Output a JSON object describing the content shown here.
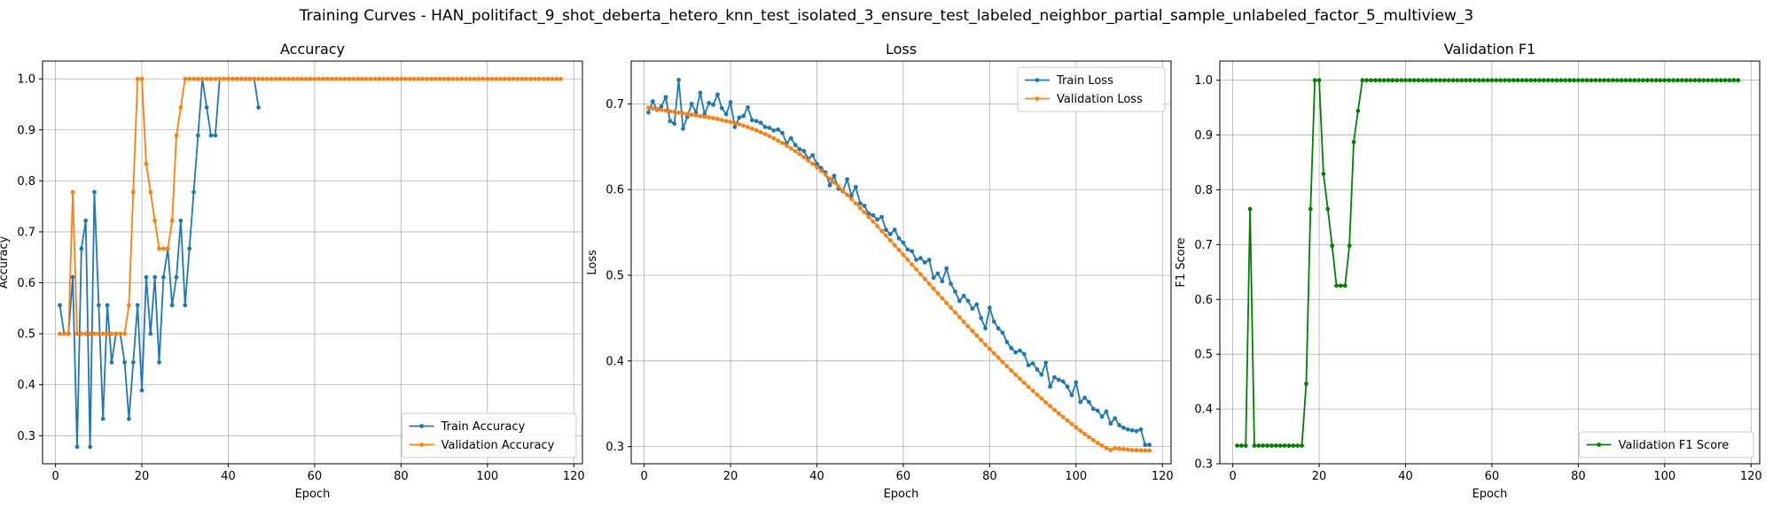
{
  "suptitle": "Training Curves - HAN_politifact_9_shot_deberta_hetero_knn_test_isolated_3_ensure_test_labeled_neighbor_partial_sample_unlabeled_factor_5_multiview_3",
  "colors": {
    "blue": "#1f77b4",
    "orange": "#ff7f0e",
    "green": "#008000",
    "grid": "#b0b0b0"
  },
  "chart_data": [
    {
      "type": "line",
      "title": "Accuracy",
      "xlabel": "Epoch",
      "ylabel": "Accuracy",
      "xlim": [
        -3,
        122
      ],
      "ylim": [
        0.245,
        1.035
      ],
      "xticks": [
        0,
        20,
        40,
        60,
        80,
        100,
        120
      ],
      "yticks": [
        0.3,
        0.4,
        0.5,
        0.6,
        0.7,
        0.8,
        0.9,
        1.0
      ],
      "legend_loc": "lower-right",
      "series": [
        {
          "name": "Train Accuracy",
          "color": "#1f77b4",
          "x_start": 1,
          "values": [
            0.556,
            0.5,
            0.5,
            0.611,
            0.278,
            0.667,
            0.722,
            0.278,
            0.778,
            0.556,
            0.333,
            0.556,
            0.444,
            0.5,
            0.5,
            0.444,
            0.333,
            0.444,
            0.556,
            0.389,
            0.611,
            0.5,
            0.611,
            0.444,
            0.611,
            0.667,
            0.556,
            0.611,
            0.722,
            0.556,
            0.667,
            0.778,
            0.889,
            1.0,
            0.944,
            0.889,
            0.889,
            1.0,
            1.0,
            1.0,
            1.0,
            1.0,
            1.0,
            1.0,
            1.0,
            1.0,
            0.944
          ]
        },
        {
          "name": "Validation Accuracy",
          "color": "#ff7f0e",
          "x_start": 1,
          "values": [
            0.5,
            0.5,
            0.5,
            0.778,
            0.5,
            0.5,
            0.5,
            0.5,
            0.5,
            0.5,
            0.5,
            0.5,
            0.5,
            0.5,
            0.5,
            0.5,
            0.556,
            0.778,
            1.0,
            1.0,
            0.833,
            0.778,
            0.722,
            0.667,
            0.667,
            0.667,
            0.722,
            0.889,
            0.944,
            1.0,
            1.0,
            1.0,
            1.0,
            1.0,
            1.0,
            1.0,
            1.0,
            1.0,
            1.0,
            1.0,
            1.0,
            1.0,
            1.0,
            1.0,
            1.0,
            1.0,
            1.0,
            1.0,
            1.0,
            1.0,
            1.0,
            1.0,
            1.0,
            1.0,
            1.0,
            1.0,
            1.0,
            1.0,
            1.0,
            1.0,
            1.0,
            1.0,
            1.0,
            1.0,
            1.0,
            1.0,
            1.0,
            1.0,
            1.0,
            1.0,
            1.0,
            1.0,
            1.0,
            1.0,
            1.0,
            1.0,
            1.0,
            1.0,
            1.0,
            1.0,
            1.0,
            1.0,
            1.0,
            1.0,
            1.0,
            1.0,
            1.0,
            1.0,
            1.0,
            1.0,
            1.0,
            1.0,
            1.0,
            1.0,
            1.0,
            1.0,
            1.0,
            1.0,
            1.0,
            1.0,
            1.0,
            1.0,
            1.0,
            1.0,
            1.0,
            1.0,
            1.0,
            1.0,
            1.0,
            1.0,
            1.0,
            1.0,
            1.0,
            1.0,
            1.0,
            1.0,
            1.0
          ]
        }
      ]
    },
    {
      "type": "line",
      "title": "Loss",
      "xlabel": "Epoch",
      "ylabel": "Loss",
      "xlim": [
        -3,
        122
      ],
      "ylim": [
        0.28,
        0.75
      ],
      "xticks": [
        0,
        20,
        40,
        60,
        80,
        100,
        120
      ],
      "yticks": [
        0.3,
        0.4,
        0.5,
        0.6,
        0.7
      ],
      "legend_loc": "top-right",
      "series": [
        {
          "name": "Train Loss",
          "color": "#1f77b4",
          "x_start": 1,
          "values": [
            0.69,
            0.703,
            0.693,
            0.697,
            0.708,
            0.68,
            0.677,
            0.728,
            0.671,
            0.685,
            0.7,
            0.69,
            0.713,
            0.688,
            0.701,
            0.699,
            0.711,
            0.695,
            0.688,
            0.702,
            0.673,
            0.684,
            0.686,
            0.696,
            0.681,
            0.68,
            0.678,
            0.673,
            0.672,
            0.669,
            0.67,
            0.666,
            0.654,
            0.66,
            0.652,
            0.647,
            0.645,
            0.636,
            0.64,
            0.63,
            0.625,
            0.62,
            0.605,
            0.616,
            0.601,
            0.598,
            0.612,
            0.593,
            0.603,
            0.584,
            0.581,
            0.572,
            0.57,
            0.565,
            0.568,
            0.553,
            0.548,
            0.553,
            0.543,
            0.538,
            0.53,
            0.528,
            0.518,
            0.52,
            0.515,
            0.518,
            0.497,
            0.502,
            0.493,
            0.508,
            0.49,
            0.481,
            0.47,
            0.476,
            0.47,
            0.461,
            0.466,
            0.45,
            0.438,
            0.462,
            0.446,
            0.438,
            0.433,
            0.422,
            0.415,
            0.41,
            0.412,
            0.408,
            0.395,
            0.397,
            0.39,
            0.384,
            0.398,
            0.37,
            0.381,
            0.378,
            0.376,
            0.37,
            0.36,
            0.375,
            0.352,
            0.357,
            0.352,
            0.344,
            0.342,
            0.335,
            0.341,
            0.327,
            0.333,
            0.325,
            0.322,
            0.32,
            0.319,
            0.318,
            0.32,
            0.302,
            0.302
          ]
        },
        {
          "name": "Validation Loss",
          "color": "#ff7f0e",
          "x_start": 1,
          "values": [
            0.6955,
            0.6947,
            0.6938,
            0.693,
            0.6922,
            0.6914,
            0.6906,
            0.6898,
            0.689,
            0.6882,
            0.6874,
            0.6866,
            0.6858,
            0.685,
            0.6842,
            0.6834,
            0.6824,
            0.6812,
            0.68,
            0.6788,
            0.6776,
            0.6762,
            0.6747,
            0.673,
            0.6711,
            0.6691,
            0.667,
            0.6648,
            0.6624,
            0.6598,
            0.6571,
            0.6543,
            0.6513,
            0.6481,
            0.6448,
            0.6414,
            0.6378,
            0.634,
            0.6301,
            0.626,
            0.6218,
            0.6174,
            0.6129,
            0.6083,
            0.6036,
            0.5988,
            0.5939,
            0.5889,
            0.5838,
            0.5786,
            0.5734,
            0.5681,
            0.5627,
            0.5573,
            0.5518,
            0.5463,
            0.5407,
            0.5351,
            0.5295,
            0.5239,
            0.5182,
            0.5126,
            0.5069,
            0.5013,
            0.4956,
            0.49,
            0.4844,
            0.4788,
            0.4732,
            0.4676,
            0.4621,
            0.4566,
            0.4511,
            0.4457,
            0.4403,
            0.4349,
            0.4296,
            0.4243,
            0.4191,
            0.4139,
            0.4088,
            0.4037,
            0.3987,
            0.3937,
            0.3888,
            0.3839,
            0.3791,
            0.3744,
            0.3697,
            0.3651,
            0.3605,
            0.356,
            0.3516,
            0.3472,
            0.3429,
            0.3387,
            0.3345,
            0.3304,
            0.3264,
            0.3224,
            0.3185,
            0.3147,
            0.311,
            0.3075,
            0.3042,
            0.3011,
            0.2983,
            0.296,
            0.298,
            0.2975,
            0.297,
            0.2965,
            0.296,
            0.2958,
            0.2956,
            0.2955,
            0.2955
          ]
        }
      ]
    },
    {
      "type": "line",
      "title": "Validation F1",
      "xlabel": "Epoch",
      "ylabel": "F1 Score",
      "xlim": [
        -3,
        122
      ],
      "ylim": [
        0.3,
        1.035
      ],
      "xticks": [
        0,
        20,
        40,
        60,
        80,
        100,
        120
      ],
      "yticks": [
        0.3,
        0.4,
        0.5,
        0.6,
        0.7,
        0.8,
        0.9,
        1.0
      ],
      "legend_loc": "lower-right",
      "series": [
        {
          "name": "Validation F1 Score",
          "color": "#008000",
          "x_start": 1,
          "values": [
            0.333,
            0.333,
            0.333,
            0.765,
            0.333,
            0.333,
            0.333,
            0.333,
            0.333,
            0.333,
            0.333,
            0.333,
            0.333,
            0.333,
            0.333,
            0.333,
            0.446,
            0.765,
            1.0,
            1.0,
            0.829,
            0.765,
            0.698,
            0.625,
            0.625,
            0.625,
            0.698,
            0.887,
            0.944,
            1.0,
            1.0,
            1.0,
            1.0,
            1.0,
            1.0,
            1.0,
            1.0,
            1.0,
            1.0,
            1.0,
            1.0,
            1.0,
            1.0,
            1.0,
            1.0,
            1.0,
            1.0,
            1.0,
            1.0,
            1.0,
            1.0,
            1.0,
            1.0,
            1.0,
            1.0,
            1.0,
            1.0,
            1.0,
            1.0,
            1.0,
            1.0,
            1.0,
            1.0,
            1.0,
            1.0,
            1.0,
            1.0,
            1.0,
            1.0,
            1.0,
            1.0,
            1.0,
            1.0,
            1.0,
            1.0,
            1.0,
            1.0,
            1.0,
            1.0,
            1.0,
            1.0,
            1.0,
            1.0,
            1.0,
            1.0,
            1.0,
            1.0,
            1.0,
            1.0,
            1.0,
            1.0,
            1.0,
            1.0,
            1.0,
            1.0,
            1.0,
            1.0,
            1.0,
            1.0,
            1.0,
            1.0,
            1.0,
            1.0,
            1.0,
            1.0,
            1.0,
            1.0,
            1.0,
            1.0,
            1.0,
            1.0,
            1.0,
            1.0,
            1.0,
            1.0,
            1.0,
            1.0
          ]
        }
      ]
    }
  ]
}
